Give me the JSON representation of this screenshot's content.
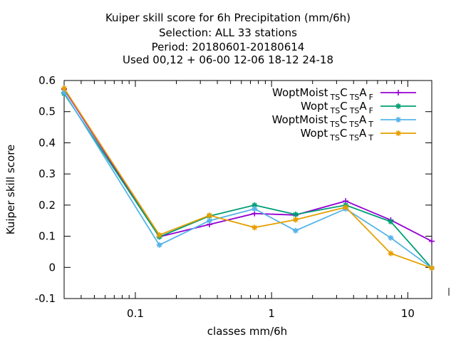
{
  "chart_data": {
    "type": "line",
    "title_lines": [
      "Kuiper skill score  for 6h Precipitation (mm/6h)",
      "Selection: ALL      33 stations",
      "Period: 20180601-20180614",
      "Used  00,12  + 06-00 12-06 18-12 24-18"
    ],
    "xlabel": "classes mm/6h",
    "ylabel": "Kuiper skill score",
    "xscale": "log",
    "xlim": [
      0.03,
      15
    ],
    "ylim": [
      -0.1,
      0.6
    ],
    "yticks": [
      -0.1,
      0,
      0.1,
      0.2,
      0.3,
      0.4,
      0.5,
      0.6
    ],
    "ytick_labels": [
      "-0.1",
      "0",
      "0.1",
      "0.2",
      "0.3",
      "0.4",
      "0.5",
      "0.6"
    ],
    "xticks": [
      0.1,
      1,
      10
    ],
    "xtick_labels": [
      "0.1",
      "1",
      "10"
    ],
    "grid": false,
    "legend_position": "top-right",
    "x": [
      0.03,
      0.15,
      0.35,
      0.75,
      1.5,
      3.5,
      7.5,
      15
    ],
    "series": [
      {
        "legend": {
          "base": "WoptMoist",
          "parts": [
            {
              "t": "TS",
              "sub": true
            },
            {
              "t": "C",
              "sub": false
            },
            {
              "t": "TS",
              "sub": true
            },
            {
              "t": "A",
              "sub": false
            },
            {
              "t": "F",
              "sub": true
            }
          ]
        },
        "color": "#9400d3",
        "marker": "plus",
        "values": [
          0.572,
          0.098,
          0.138,
          0.173,
          0.168,
          0.213,
          0.152,
          0.084
        ]
      },
      {
        "legend": {
          "base": "Wopt",
          "parts": [
            {
              "t": "TS",
              "sub": true
            },
            {
              "t": "C",
              "sub": false
            },
            {
              "t": "TS",
              "sub": true
            },
            {
              "t": "A",
              "sub": false
            },
            {
              "t": "F",
              "sub": true
            }
          ]
        },
        "color": "#009e73",
        "marker": "star",
        "values": [
          0.558,
          0.098,
          0.165,
          0.2,
          0.17,
          0.2,
          0.147,
          -0.002
        ]
      },
      {
        "legend": {
          "base": "WoptMoist",
          "parts": [
            {
              "t": "TS",
              "sub": true
            },
            {
              "t": "C",
              "sub": false
            },
            {
              "t": "TS",
              "sub": true
            },
            {
              "t": "A",
              "sub": false
            },
            {
              "t": "T",
              "sub": true
            }
          ]
        },
        "color": "#56b4e9",
        "marker": "star",
        "values": [
          0.562,
          0.072,
          0.15,
          0.188,
          0.118,
          0.188,
          0.095,
          -0.002
        ]
      },
      {
        "legend": {
          "base": "Wopt",
          "parts": [
            {
              "t": "TS",
              "sub": true
            },
            {
              "t": "C",
              "sub": false
            },
            {
              "t": "TS",
              "sub": true
            },
            {
              "t": "A",
              "sub": false
            },
            {
              "t": "T",
              "sub": true
            }
          ]
        },
        "color": "#e69f00",
        "marker": "star",
        "values": [
          0.575,
          0.104,
          0.167,
          0.128,
          0.153,
          0.193,
          0.045,
          -0.002
        ]
      }
    ]
  }
}
